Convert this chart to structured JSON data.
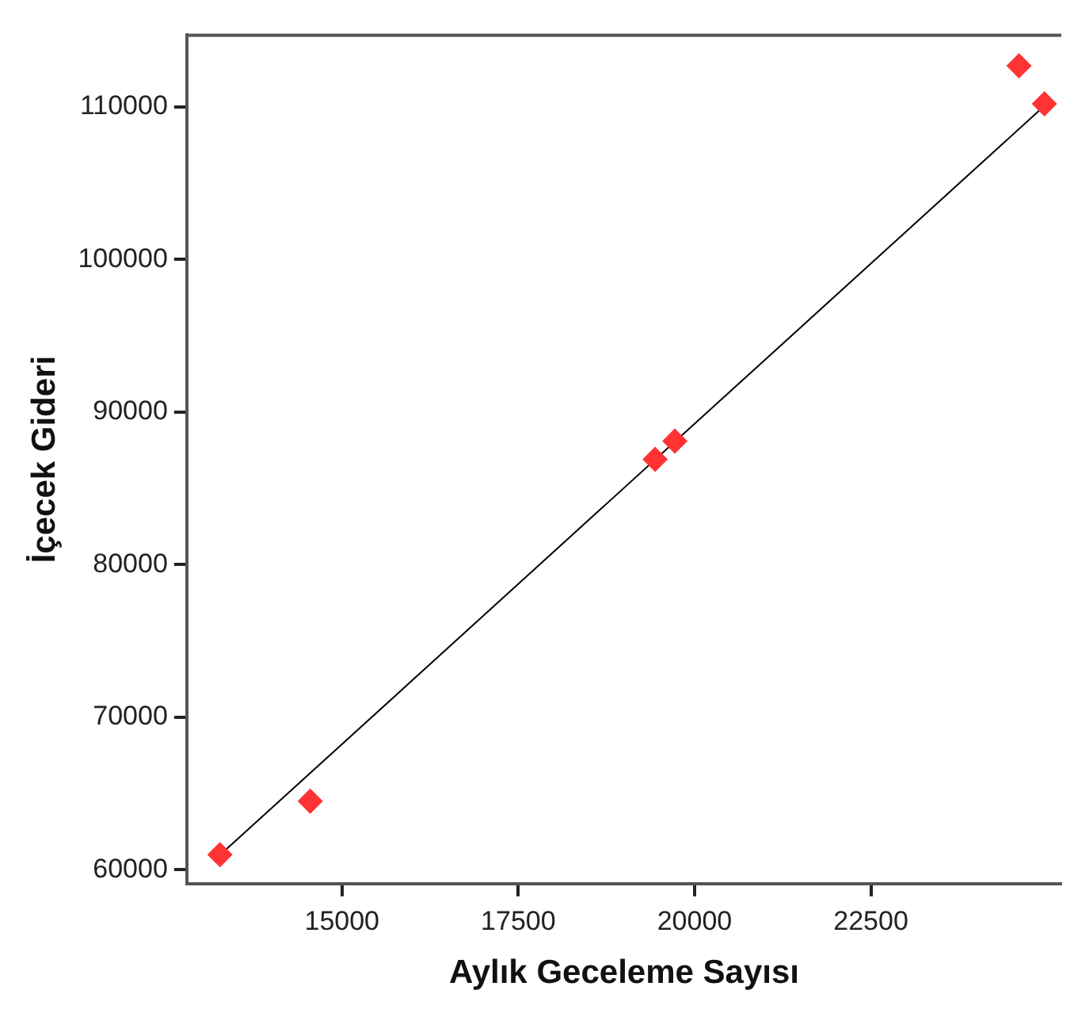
{
  "chart_data": {
    "type": "scatter",
    "xlabel": "Aylık Geceleme Sayısı",
    "ylabel": "İçecek Gideri",
    "xlim": [
      12800,
      25200
    ],
    "xticks": [
      15000,
      17500,
      20000,
      22500
    ],
    "ylim": [
      59100,
      114700
    ],
    "yticks": [
      60000,
      70000,
      80000,
      90000,
      100000,
      110000
    ],
    "series": [
      {
        "color": "#ff3333",
        "marker": "diamond",
        "x": [
          13270,
          14550,
          19440,
          19720,
          24600,
          24960
        ],
        "values": [
          61000,
          64500,
          86900,
          88100,
          112700,
          110200
        ]
      },
      {
        "type": "line",
        "marker": "none",
        "color": "#000000",
        "x": [
          13300,
          24920
        ],
        "values": [
          61100,
          109900
        ]
      }
    ]
  }
}
